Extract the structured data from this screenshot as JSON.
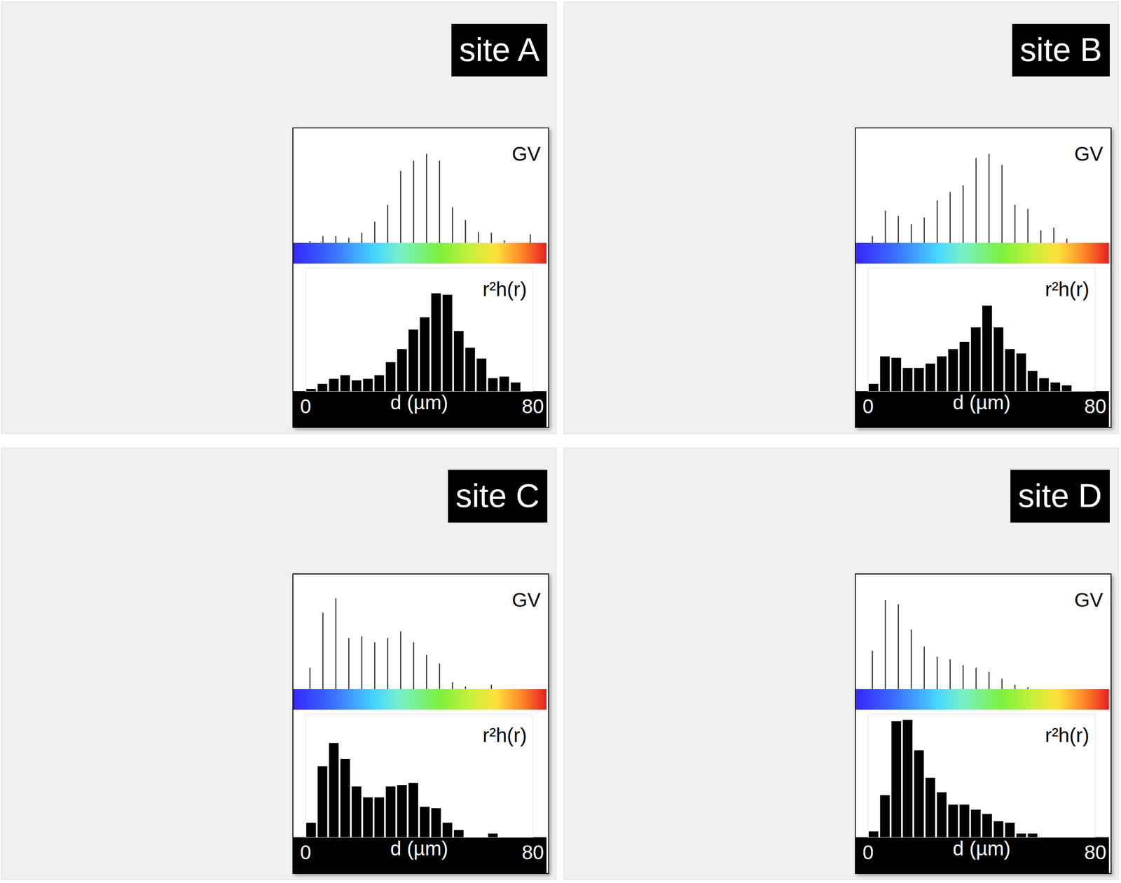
{
  "chart_data": [
    {
      "type": "panel",
      "title": "site A",
      "charts": [
        {
          "type": "stem",
          "title": "GV",
          "categories": [
            null,
            null,
            null,
            null,
            null,
            null,
            null,
            null,
            null,
            null,
            null,
            null,
            null,
            null,
            null,
            null,
            null,
            null
          ],
          "values": [
            2,
            8,
            8,
            6,
            12,
            25,
            45,
            85,
            97,
            105,
            97,
            42,
            27,
            13,
            12,
            3,
            0,
            10
          ],
          "ylim": [
            0,
            130
          ],
          "tick_labels": false,
          "color": "#333333"
        },
        {
          "type": "histogram",
          "title": "r²h(r)",
          "xlabel": "d (µm)",
          "bins": [
            0,
            4,
            8,
            12,
            16,
            20,
            24,
            28,
            32,
            36,
            40,
            44,
            48,
            52,
            56,
            60,
            64,
            68,
            72,
            76,
            80
          ],
          "counts": [
            3,
            10,
            17,
            22,
            15,
            17,
            22,
            40,
            58,
            85,
            102,
            135,
            133,
            83,
            60,
            45,
            18,
            20,
            12,
            0
          ],
          "xlim": [
            0,
            80
          ],
          "xticks": [
            0,
            80
          ],
          "ylim": [
            0,
            170
          ],
          "tick_labels": "x",
          "color": "#000000"
        }
      ]
    },
    {
      "type": "panel",
      "title": "site B",
      "charts": [
        {
          "type": "stem",
          "title": "GV",
          "categories": [
            null,
            null,
            null,
            null,
            null,
            null,
            null,
            null,
            null,
            null,
            null,
            null,
            null,
            null,
            null,
            null,
            null,
            null
          ],
          "values": [
            8,
            38,
            32,
            22,
            30,
            50,
            60,
            68,
            100,
            105,
            92,
            45,
            40,
            15,
            18,
            5,
            0,
            0
          ],
          "ylim": [
            0,
            130
          ],
          "tick_labels": false,
          "color": "#333333"
        },
        {
          "type": "histogram",
          "title": "r²h(r)",
          "xlabel": "d (µm)",
          "bins": [
            0,
            4,
            8,
            12,
            16,
            20,
            24,
            28,
            32,
            36,
            40,
            44,
            48,
            52,
            56,
            60,
            64,
            68,
            72,
            76,
            80
          ],
          "counts": [
            10,
            48,
            46,
            32,
            32,
            38,
            48,
            58,
            68,
            88,
            118,
            88,
            58,
            52,
            28,
            18,
            12,
            8,
            0,
            0
          ],
          "xlim": [
            0,
            80
          ],
          "xticks": [
            0,
            80
          ],
          "ylim": [
            0,
            170
          ],
          "tick_labels": "x",
          "color": "#000000"
        }
      ]
    },
    {
      "type": "panel",
      "title": "site C",
      "charts": [
        {
          "type": "stem",
          "title": "GV",
          "categories": [
            null,
            null,
            null,
            null,
            null,
            null,
            null,
            null,
            null,
            null,
            null,
            null,
            null,
            null,
            null,
            null,
            null,
            null
          ],
          "values": [
            25,
            90,
            107,
            60,
            62,
            55,
            60,
            68,
            55,
            40,
            30,
            8,
            3,
            0,
            5,
            0,
            0,
            0
          ],
          "ylim": [
            0,
            130
          ],
          "tick_labels": false,
          "color": "#333333"
        },
        {
          "type": "histogram",
          "title": "r²h(r)",
          "xlabel": "d (µm)",
          "bins": [
            0,
            4,
            8,
            12,
            16,
            20,
            24,
            28,
            32,
            36,
            40,
            44,
            48,
            52,
            56,
            60,
            64,
            68,
            72,
            76,
            80
          ],
          "counts": [
            20,
            98,
            130,
            108,
            70,
            55,
            55,
            70,
            72,
            75,
            42,
            40,
            20,
            10,
            0,
            0,
            5,
            0,
            0,
            0
          ],
          "xlim": [
            0,
            80
          ],
          "xticks": [
            0,
            80
          ],
          "ylim": [
            0,
            170
          ],
          "tick_labels": "x",
          "color": "#000000"
        }
      ]
    },
    {
      "type": "panel",
      "title": "site D",
      "charts": [
        {
          "type": "stem",
          "title": "GV",
          "categories": [
            null,
            null,
            null,
            null,
            null,
            null,
            null,
            null,
            null,
            null,
            null,
            null,
            null,
            null,
            null,
            null,
            null,
            null
          ],
          "values": [
            45,
            105,
            100,
            70,
            50,
            38,
            35,
            28,
            25,
            20,
            12,
            5,
            2,
            0,
            0,
            0,
            0,
            0
          ],
          "ylim": [
            0,
            130
          ],
          "tick_labels": false,
          "color": "#333333"
        },
        {
          "type": "histogram",
          "title": "r²h(r)",
          "xlabel": "d (µm)",
          "bins": [
            0,
            4,
            8,
            12,
            16,
            20,
            24,
            28,
            32,
            36,
            40,
            44,
            48,
            52,
            56,
            60,
            64,
            68,
            72,
            76,
            80
          ],
          "counts": [
            8,
            58,
            160,
            162,
            120,
            82,
            62,
            45,
            45,
            38,
            32,
            22,
            20,
            5,
            5,
            0,
            0,
            0,
            0,
            0
          ],
          "xlim": [
            0,
            80
          ],
          "xticks": [
            0,
            80
          ],
          "ylim": [
            0,
            170
          ],
          "tick_labels": "x",
          "color": "#000000"
        }
      ]
    }
  ]
}
